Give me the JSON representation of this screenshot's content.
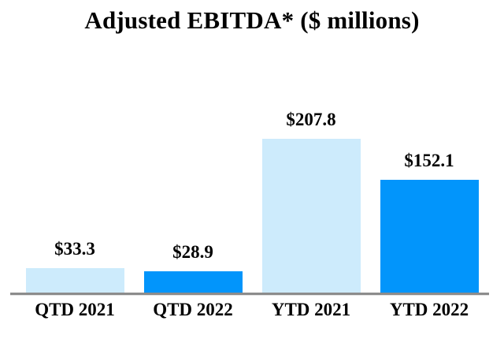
{
  "chart_data": {
    "type": "bar",
    "title": "Adjusted EBITDA* ($ millions)",
    "categories": [
      "QTD 2021",
      "QTD 2022",
      "YTD 2021",
      "YTD 2022"
    ],
    "values": [
      33.3,
      28.9,
      207.8,
      152.1
    ],
    "value_labels": [
      "$33.3",
      "$28.9",
      "$207.8",
      "$152.1"
    ],
    "bar_colors": [
      "#cdebfc",
      "#0295fb",
      "#cdebfc",
      "#0295fb"
    ],
    "xlabel": "",
    "ylabel": "",
    "ylim": [
      0,
      220
    ],
    "grid": false,
    "legend": "none",
    "colors": {
      "light_blue_2021": "#cdebfc",
      "bright_blue_2022": "#0295fb",
      "axis_line": "#8c8c8c",
      "text": "#000000",
      "background": "#ffffff"
    }
  }
}
